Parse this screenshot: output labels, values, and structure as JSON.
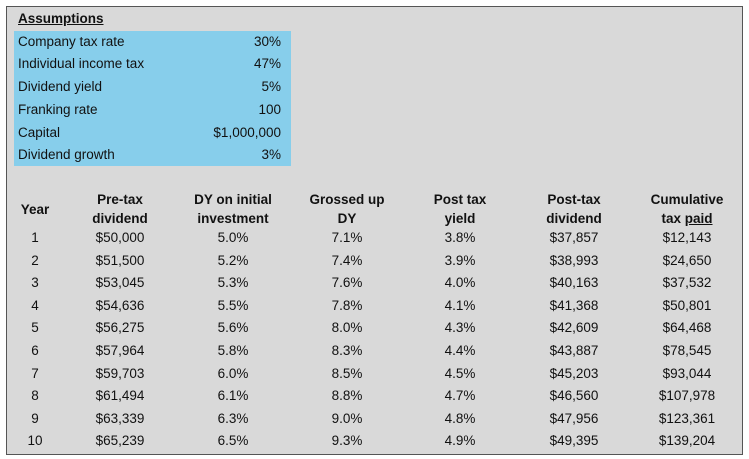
{
  "assumptions": {
    "title": "Assumptions",
    "rows": [
      {
        "label": "Company tax rate",
        "value": "30%"
      },
      {
        "label": "Individual income tax",
        "value": "47%"
      },
      {
        "label": "Dividend yield",
        "value": "5%"
      },
      {
        "label": "Franking rate",
        "value": "100"
      },
      {
        "label": "Capital",
        "value": "$1,000,000"
      },
      {
        "label": "Dividend growth",
        "value": "3%"
      }
    ],
    "highlight_color": "#87ceeb"
  },
  "table": {
    "headers": {
      "year": "Year",
      "pretax_1": "Pre-tax",
      "pretax_2": "dividend",
      "dy_1": "DY on initial",
      "dy_2": "investment",
      "gross_1": "Grossed up",
      "gross_2": "DY",
      "posty_1": "Post tax",
      "posty_2": "yield",
      "postd_1": "Post-tax",
      "postd_2": "dividend",
      "cum_1": "Cumulative",
      "cum_2a": "tax",
      "cum_2b": "paid"
    },
    "rows": [
      [
        "1",
        "$50,000",
        "5.0%",
        "7.1%",
        "3.8%",
        "$37,857",
        "$12,143"
      ],
      [
        "2",
        "$51,500",
        "5.2%",
        "7.4%",
        "3.9%",
        "$38,993",
        "$24,650"
      ],
      [
        "3",
        "$53,045",
        "5.3%",
        "7.6%",
        "4.0%",
        "$40,163",
        "$37,532"
      ],
      [
        "4",
        "$54,636",
        "5.5%",
        "7.8%",
        "4.1%",
        "$41,368",
        "$50,801"
      ],
      [
        "5",
        "$56,275",
        "5.6%",
        "8.0%",
        "4.3%",
        "$42,609",
        "$64,468"
      ],
      [
        "6",
        "$57,964",
        "5.8%",
        "8.3%",
        "4.4%",
        "$43,887",
        "$78,545"
      ],
      [
        "7",
        "$59,703",
        "6.0%",
        "8.5%",
        "4.5%",
        "$45,203",
        "$93,044"
      ],
      [
        "8",
        "$61,494",
        "6.1%",
        "8.8%",
        "4.7%",
        "$46,560",
        "$107,978"
      ],
      [
        "9",
        "$63,339",
        "6.3%",
        "9.0%",
        "4.8%",
        "$47,956",
        "$123,361"
      ],
      [
        "10",
        "$65,239",
        "6.5%",
        "9.3%",
        "4.9%",
        "$49,395",
        "$139,204"
      ]
    ]
  }
}
